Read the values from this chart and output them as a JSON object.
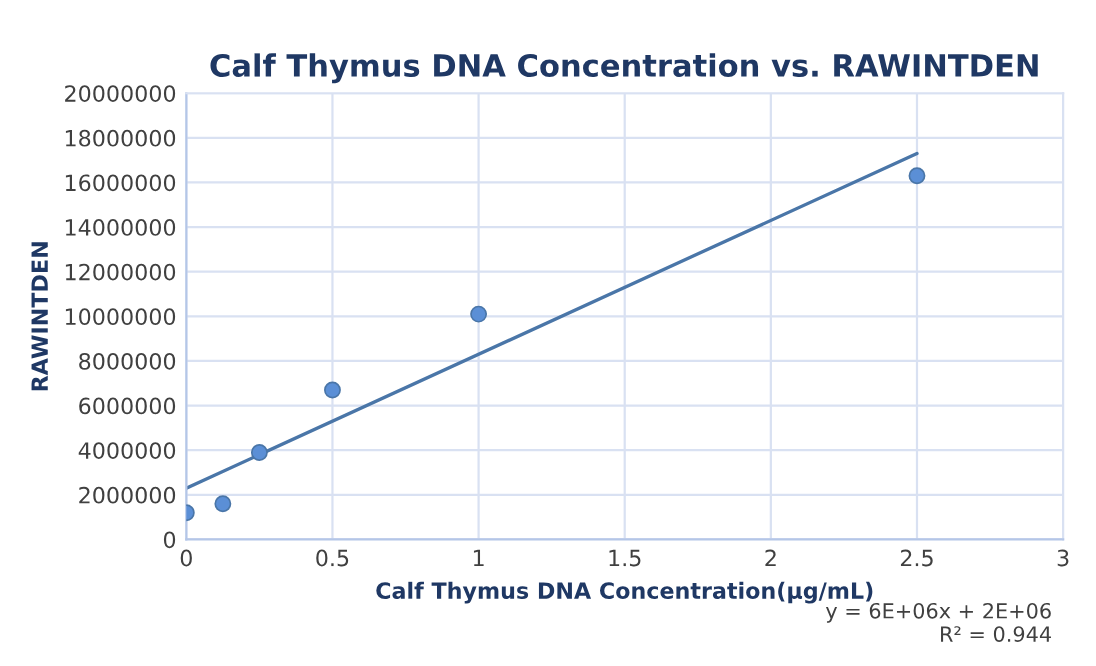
{
  "chart_data": {
    "type": "scatter",
    "title": "Calf Thymus DNA Concentration vs. RAWINTDEN",
    "xlabel": "Calf Thymus DNA Concentration(µg/mL)",
    "ylabel": "RAWINTDEN",
    "series": [
      {
        "marker": "circle",
        "color": "#5b8fd6",
        "x": [
          0,
          0.125,
          0.25,
          0.5,
          1,
          2.5
        ],
        "values": [
          1200000,
          1600000,
          3900000,
          6700000,
          10100000,
          16300000
        ]
      },
      {
        "type": "line",
        "marker": "none",
        "color": "#4a76a8",
        "x": [
          0,
          2.5
        ],
        "values": [
          2300000,
          17300000
        ]
      }
    ],
    "xlim": [
      0,
      3
    ],
    "xticks": [
      0,
      0.5,
      1,
      1.5,
      2,
      2.5,
      3
    ],
    "ylim": [
      0,
      20000000
    ],
    "yticks": [
      0,
      2000000,
      4000000,
      6000000,
      8000000,
      10000000,
      12000000,
      14000000,
      16000000,
      18000000,
      20000000
    ],
    "grid": true,
    "line_style": "solid",
    "annotations": [
      "y = 6E+06x + 2E+06\nR² = 0.944"
    ]
  }
}
